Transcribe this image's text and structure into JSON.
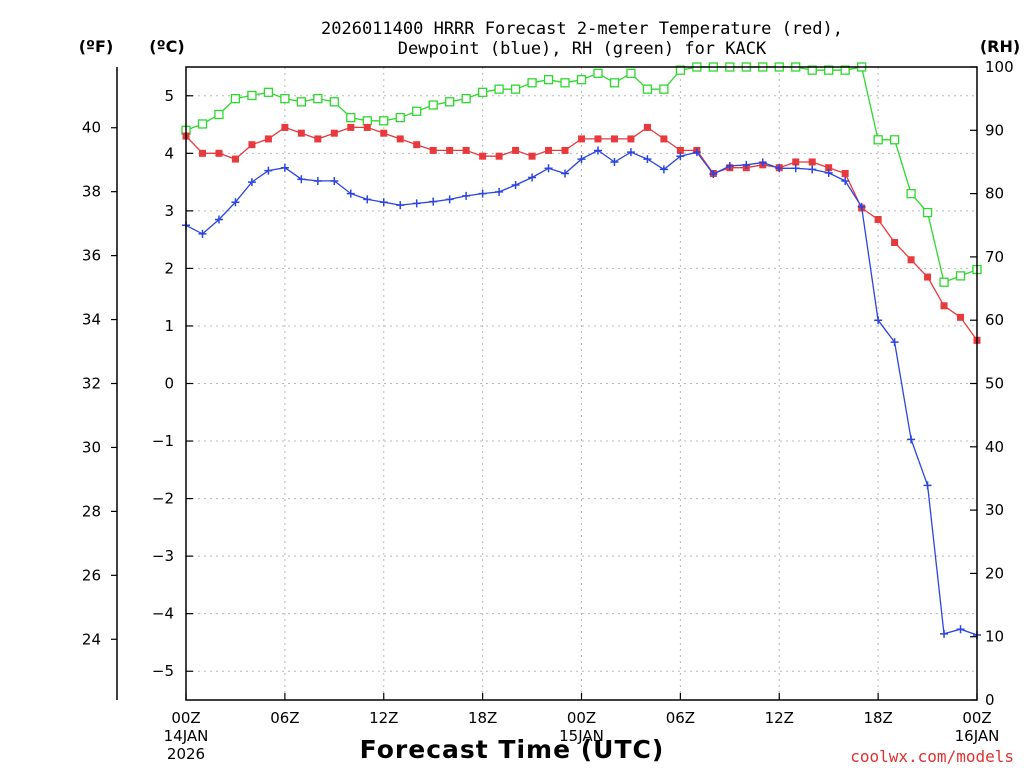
{
  "chart_data": {
    "type": "line",
    "title_lines": [
      "2026011400 HRRR Forecast 2-meter Temperature (red),",
      "Dewpoint (blue), RH (green) for KACK"
    ],
    "xlabel": "Forecast Time (UTC)",
    "credit": "coolwx.com/models",
    "x_forecast_hour_range": [
      0,
      48
    ],
    "x_ticks": [
      {
        "hour": 0,
        "lines": [
          "00Z",
          "14JAN",
          "2026"
        ]
      },
      {
        "hour": 6,
        "lines": [
          "06Z"
        ]
      },
      {
        "hour": 12,
        "lines": [
          "12Z"
        ]
      },
      {
        "hour": 18,
        "lines": [
          "18Z"
        ]
      },
      {
        "hour": 24,
        "lines": [
          "00Z",
          "15JAN"
        ]
      },
      {
        "hour": 30,
        "lines": [
          "06Z"
        ]
      },
      {
        "hour": 36,
        "lines": [
          "12Z"
        ]
      },
      {
        "hour": 42,
        "lines": [
          "18Z"
        ]
      },
      {
        "hour": 48,
        "lines": [
          "00Z",
          "16JAN"
        ]
      }
    ],
    "y_celsius": {
      "label": "(ºC)",
      "range": [
        -5.5,
        5.5
      ],
      "ticks": [
        5,
        4,
        3,
        2,
        1,
        0,
        -1,
        -2,
        -3,
        -4,
        -5
      ],
      "tick_labels": [
        "5",
        "4",
        "3",
        "2",
        "1",
        "0",
        "−1",
        "−2",
        "−3",
        "−4",
        "−5"
      ]
    },
    "y_fahrenheit": {
      "label": "(ºF)",
      "ticks": [
        40,
        38,
        36,
        34,
        32,
        30,
        28,
        26,
        24
      ]
    },
    "y_rh": {
      "label": "(RH)",
      "range": [
        0,
        100
      ],
      "ticks": [
        0,
        10,
        20,
        30,
        40,
        50,
        60,
        70,
        80,
        90,
        100
      ]
    },
    "series": [
      {
        "name": "Temperature (°C)",
        "color": "#e8393c",
        "marker": "filled-square",
        "axis": "celsius",
        "values": [
          4.3,
          4.0,
          4.0,
          3.9,
          4.15,
          4.25,
          4.45,
          4.35,
          4.25,
          4.35,
          4.45,
          4.45,
          4.35,
          4.25,
          4.15,
          4.05,
          4.05,
          4.05,
          3.95,
          3.95,
          4.05,
          3.95,
          4.05,
          4.05,
          4.25,
          4.25,
          4.25,
          4.25,
          4.45,
          4.25,
          4.05,
          4.05,
          3.65,
          3.75,
          3.75,
          3.8,
          3.75,
          3.85,
          3.85,
          3.75,
          3.65,
          3.05,
          2.85,
          2.45,
          2.15,
          1.85,
          1.35,
          1.15,
          0.75
        ]
      },
      {
        "name": "Dewpoint (°C)",
        "color": "#2b45e0",
        "marker": "plus",
        "axis": "celsius",
        "values": [
          2.75,
          2.6,
          2.85,
          3.15,
          3.5,
          3.7,
          3.75,
          3.55,
          3.52,
          3.52,
          3.3,
          3.2,
          3.15,
          3.1,
          3.13,
          3.16,
          3.2,
          3.26,
          3.3,
          3.33,
          3.45,
          3.58,
          3.74,
          3.65,
          3.9,
          4.05,
          3.85,
          4.02,
          3.9,
          3.72,
          3.95,
          4.02,
          3.64,
          3.78,
          3.8,
          3.84,
          3.74,
          3.74,
          3.72,
          3.66,
          3.52,
          3.07,
          1.1,
          0.72,
          -0.97,
          -1.77,
          -4.35,
          -4.27,
          -4.37
        ]
      },
      {
        "name": "RH (%)",
        "color": "#2ed82e",
        "marker": "open-square",
        "axis": "rh",
        "values": [
          90,
          91,
          92.5,
          95,
          95.5,
          96,
          95,
          94.5,
          95,
          94.5,
          92,
          91.5,
          91.5,
          92,
          93,
          94,
          94.5,
          95,
          96,
          96.5,
          96.5,
          97.5,
          98,
          97.5,
          98,
          99,
          97.5,
          99,
          96.5,
          96.5,
          99.5,
          100,
          100,
          100,
          100,
          100,
          100,
          100,
          99.5,
          99.5,
          99.5,
          100,
          88.5,
          88.5,
          80,
          77,
          66,
          67,
          68
        ]
      }
    ]
  }
}
